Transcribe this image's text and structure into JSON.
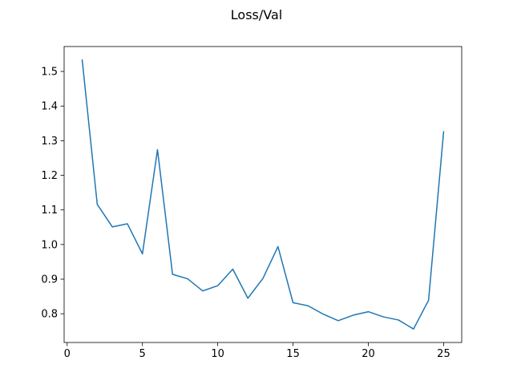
{
  "chart_data": {
    "type": "line",
    "title": "Loss/Val",
    "xlabel": "",
    "ylabel": "",
    "xlim": [
      -0.2,
      26.2
    ],
    "ylim": [
      0.717,
      1.572
    ],
    "xticks": [
      0,
      5,
      10,
      15,
      20,
      25
    ],
    "yticks": [
      0.8,
      0.9,
      1.0,
      1.1,
      1.2,
      1.3,
      1.4,
      1.5
    ],
    "ytick_labels": [
      "0.8",
      "0.9",
      "1.0",
      "1.1",
      "1.2",
      "1.3",
      "1.4",
      "1.5"
    ],
    "grid": false,
    "legend": "none",
    "series": [
      {
        "color": "#1f77b4",
        "x": [
          1,
          2,
          3,
          4,
          5,
          6,
          7,
          8,
          9,
          10,
          11,
          12,
          13,
          14,
          15,
          16,
          17,
          18,
          19,
          20,
          21,
          22,
          23,
          24,
          25
        ],
        "y": [
          1.533,
          1.116,
          1.051,
          1.06,
          0.973,
          1.274,
          0.914,
          0.901,
          0.866,
          0.881,
          0.929,
          0.845,
          0.902,
          0.994,
          0.832,
          0.823,
          0.799,
          0.78,
          0.796,
          0.806,
          0.791,
          0.782,
          0.756,
          0.839,
          1.326
        ]
      }
    ]
  }
}
